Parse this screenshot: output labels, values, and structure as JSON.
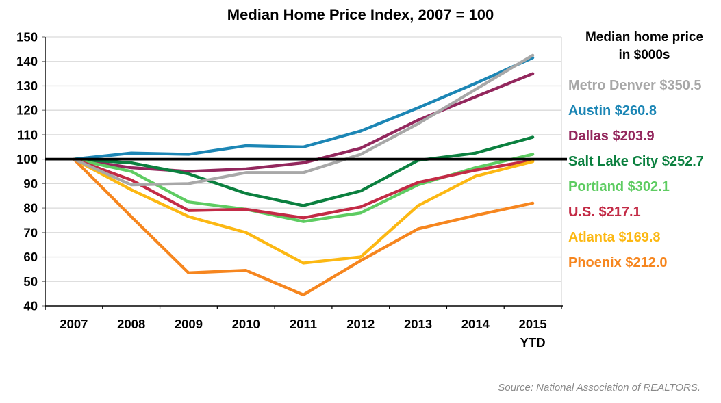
{
  "title": "Median Home Price Index, 2007 = 100",
  "source_note": "Source: National Association of REALTORS.",
  "legend": {
    "title_line1": "Median home price",
    "title_line2": "in $000s",
    "position": "right"
  },
  "chart_data": {
    "type": "line",
    "title": "Median Home Price Index, 2007 = 100",
    "categories": [
      "2007",
      "2008",
      "2009",
      "2010",
      "2011",
      "2012",
      "2013",
      "2014",
      "2015"
    ],
    "category_sublabels": [
      "",
      "",
      "",
      "",
      "",
      "",
      "",
      "",
      "YTD"
    ],
    "ylim": [
      40,
      150
    ],
    "yticks": [
      40,
      50,
      60,
      70,
      80,
      90,
      100,
      110,
      120,
      130,
      140,
      150
    ],
    "baseline_value": 100,
    "grid": "horizontal",
    "legend_position": "right",
    "colors": {
      "grid": "#d9d9d9",
      "axis": "#000000",
      "baseline": "#000000"
    },
    "series": [
      {
        "name": "Metro Denver",
        "price": "$350.5",
        "color": "#a8a8a8",
        "values": [
          100,
          89.5,
          90,
          94.5,
          94.5,
          102,
          114.5,
          128.5,
          142.5
        ]
      },
      {
        "name": "Austin",
        "price": "$260.8",
        "color": "#1c86b5",
        "values": [
          100,
          102.5,
          102,
          105.5,
          105,
          111.5,
          121,
          131,
          141.5
        ]
      },
      {
        "name": "Dallas",
        "price": "$203.9",
        "color": "#93275d",
        "values": [
          100,
          96.5,
          95,
          96,
          98.5,
          104.5,
          116,
          125.5,
          135
        ]
      },
      {
        "name": "Salt Lake City",
        "price": "$252.7",
        "color": "#0b803f",
        "values": [
          100,
          98.5,
          94,
          86,
          81,
          87,
          99.5,
          102.5,
          109
        ]
      },
      {
        "name": "Portland",
        "price": "$302.1",
        "color": "#5ecc62",
        "values": [
          100,
          95,
          82.5,
          79.5,
          74.5,
          78,
          89.5,
          96.5,
          102
        ]
      },
      {
        "name": "U.S.",
        "price": "$217.1",
        "color": "#c32b46",
        "values": [
          100,
          91.5,
          79,
          79.5,
          76,
          80.5,
          90.5,
          95.5,
          99.5
        ]
      },
      {
        "name": "Atlanta",
        "price": "$169.8",
        "color": "#fcb813",
        "values": [
          100,
          87.5,
          76.5,
          70,
          57.5,
          60,
          81,
          93,
          99
        ]
      },
      {
        "name": "Phoenix",
        "price": "$212.0",
        "color": "#f6861f",
        "values": [
          100,
          76.5,
          53.5,
          54.5,
          44.5,
          58.5,
          71.5,
          77,
          82
        ]
      }
    ]
  }
}
